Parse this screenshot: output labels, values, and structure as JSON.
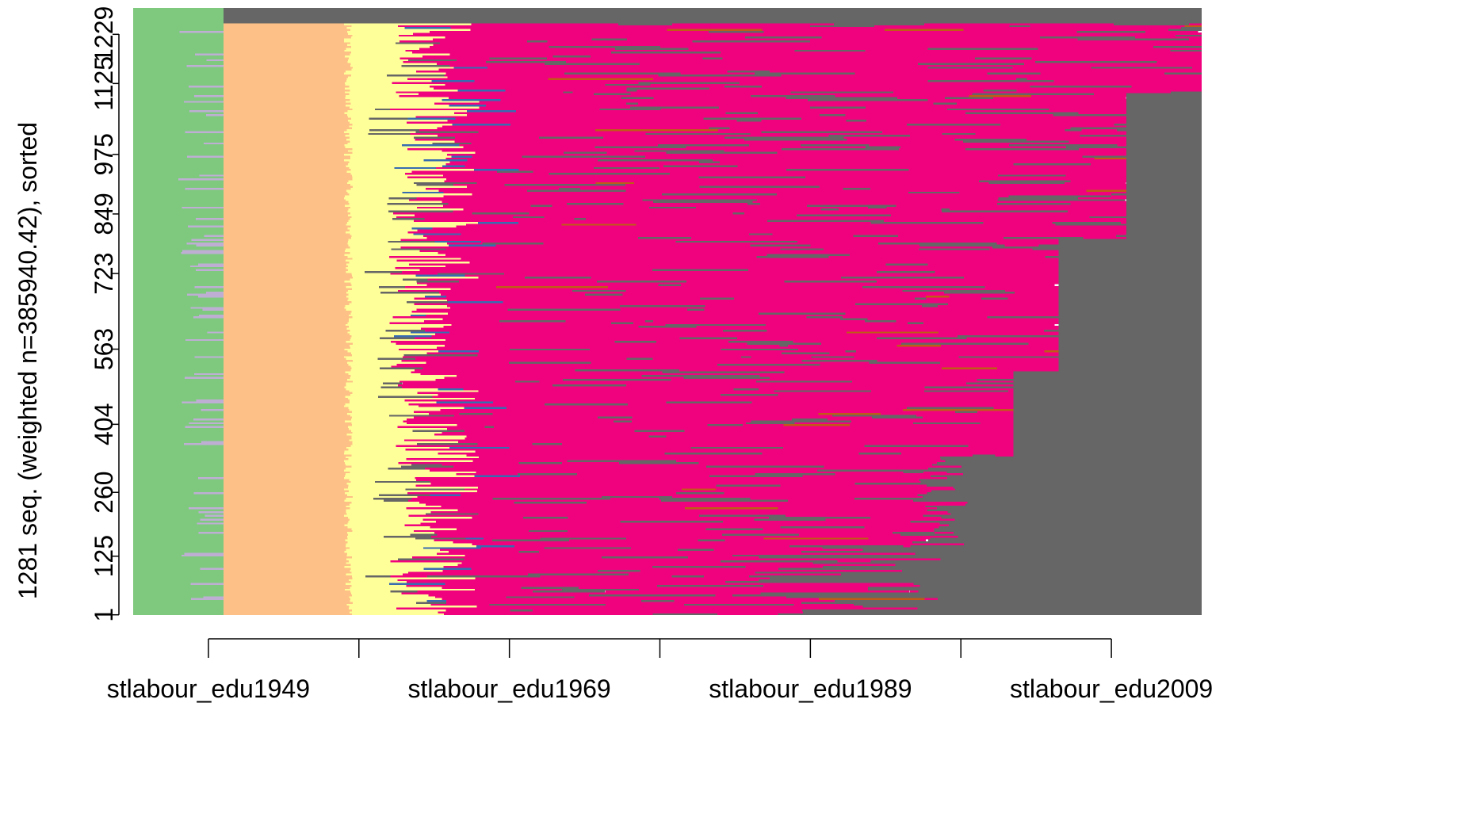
{
  "chart_data": {
    "type": "heatmap",
    "subtype": "sequence index plot (sorted)",
    "ylabel": "1281 seq. (weighted n=385940.42), sorted",
    "y_tick_labels": [
      "1",
      "125",
      "260",
      "404",
      "563",
      "723",
      "849",
      "975",
      "1125",
      "1229"
    ],
    "x_tick_labels": [
      "stlabour_edu1949",
      "stlabour_edu1969",
      "stlabour_edu1989",
      "stlabour_edu2009"
    ],
    "x_years": {
      "start": 1944,
      "end": 2015,
      "tick_years": [
        1949,
        1959,
        1969,
        1979,
        1989,
        1999,
        2009
      ]
    },
    "n_sequences": 1281,
    "grid": false,
    "legend": "none",
    "states": [
      {
        "name": "state-green",
        "color": "#7FC97F"
      },
      {
        "name": "state-lavender",
        "color": "#BEAED4"
      },
      {
        "name": "state-peach",
        "color": "#FDC086"
      },
      {
        "name": "state-yellow",
        "color": "#FFFF99"
      },
      {
        "name": "state-blue",
        "color": "#386CB0"
      },
      {
        "name": "state-magenta",
        "color": "#F0027F"
      },
      {
        "name": "state-brown",
        "color": "#BF5B17"
      },
      {
        "name": "state-gray",
        "color": "#666666"
      }
    ]
  }
}
